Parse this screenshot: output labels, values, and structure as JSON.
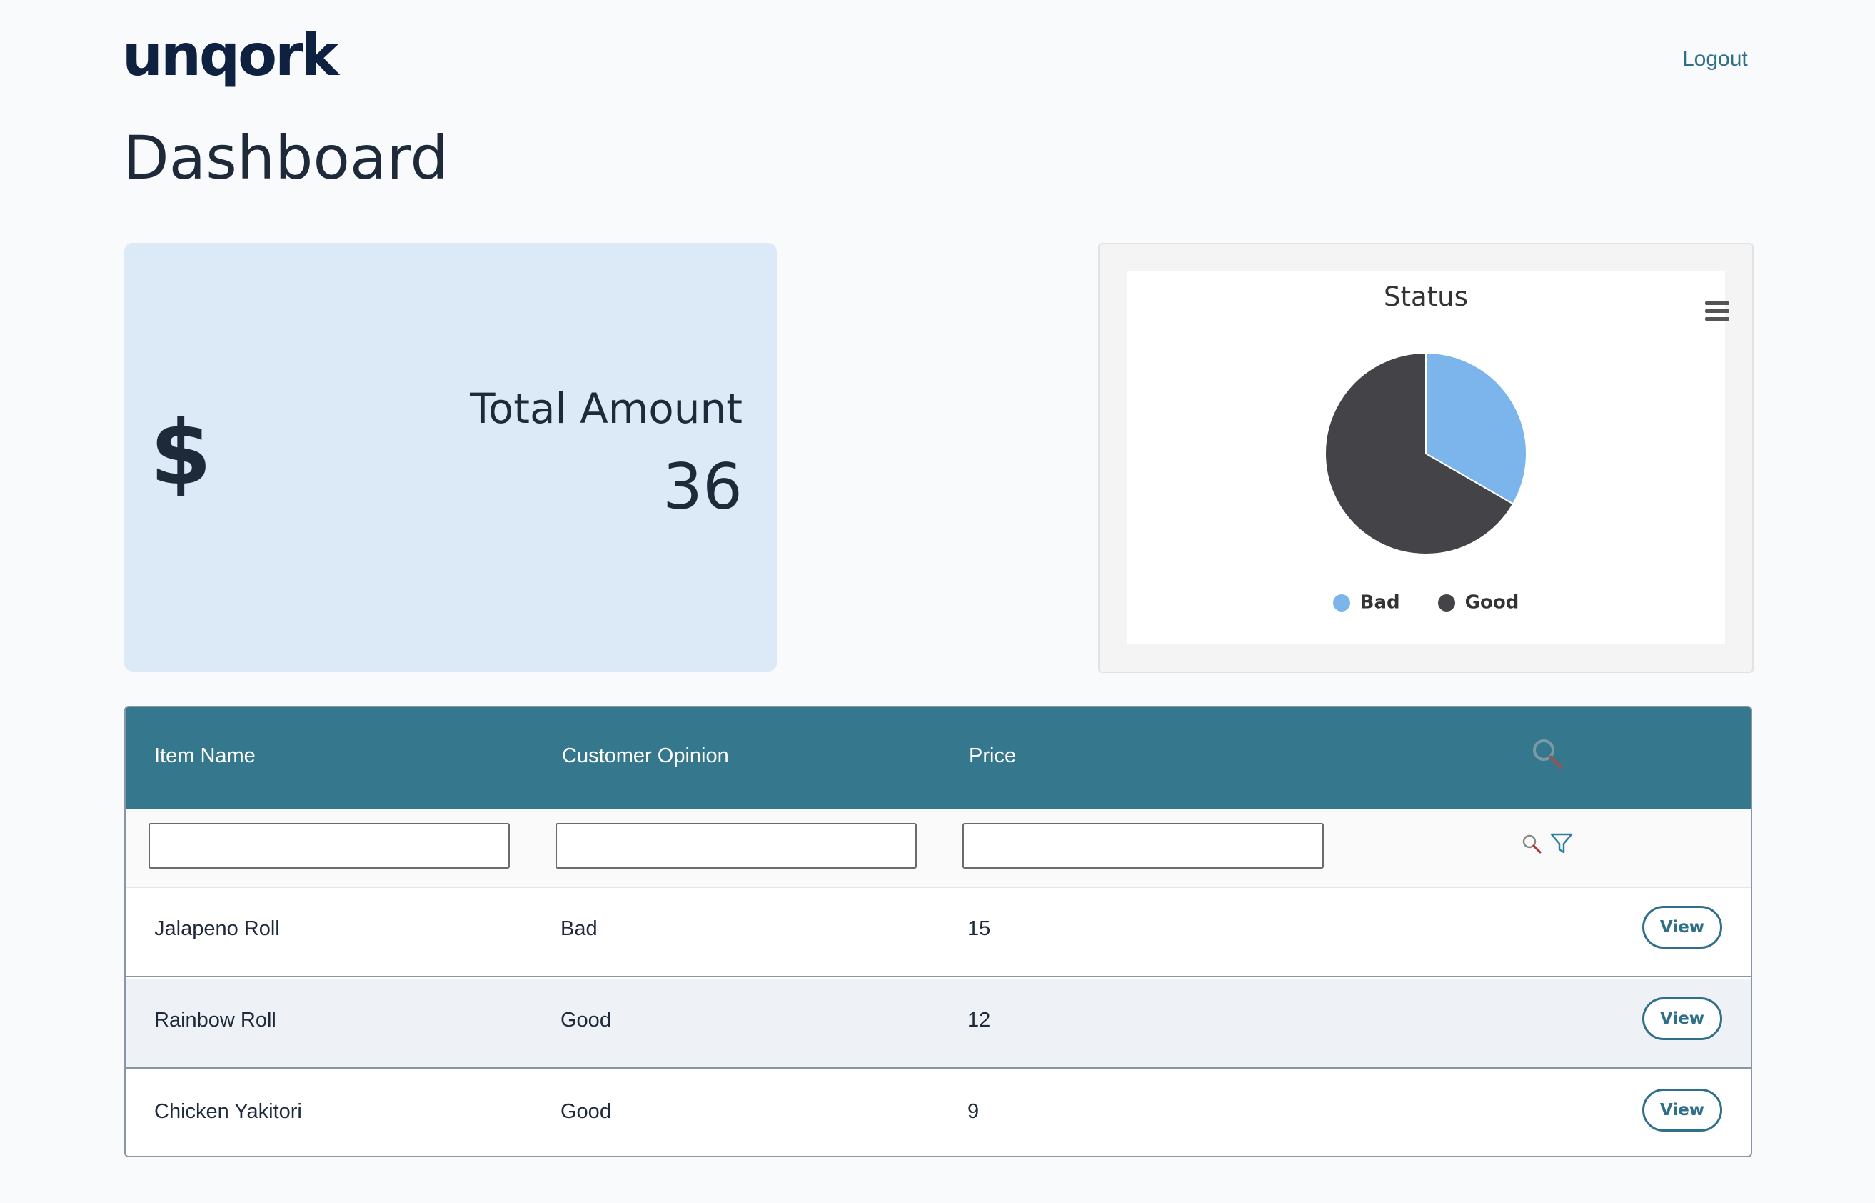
{
  "header": {
    "logo_text": "unqork",
    "logout_label": "Logout"
  },
  "page": {
    "title": "Dashboard"
  },
  "kpi": {
    "icon": "dollar-icon",
    "icon_glyph": "$",
    "label": "Total Amount",
    "value": "36"
  },
  "chart": {
    "menu_icon": "hamburger-menu-icon",
    "legend": [
      {
        "label": "Bad",
        "color": "#7cb5ec"
      },
      {
        "label": "Good",
        "color": "#434348"
      }
    ]
  },
  "chart_data": {
    "type": "pie",
    "title": "Status",
    "categories": [
      "Bad",
      "Good"
    ],
    "values": [
      1,
      2
    ],
    "colors": [
      "#7cb5ec",
      "#434348"
    ],
    "legend_position": "bottom"
  },
  "grid": {
    "columns": [
      "Item Name",
      "Customer Opinion",
      "Price"
    ],
    "header_search_icon": "search-icon",
    "filter_icons": [
      "search-icon",
      "filter-icon"
    ],
    "filters": [
      "",
      "",
      ""
    ],
    "rows": [
      {
        "item": "Jalapeno Roll",
        "opinion": "Bad",
        "price": "15",
        "action": "View"
      },
      {
        "item": "Rainbow Roll",
        "opinion": "Good",
        "price": "12",
        "action": "View"
      },
      {
        "item": "Chicken Yakitori",
        "opinion": "Good",
        "price": "9",
        "action": "View"
      }
    ]
  }
}
